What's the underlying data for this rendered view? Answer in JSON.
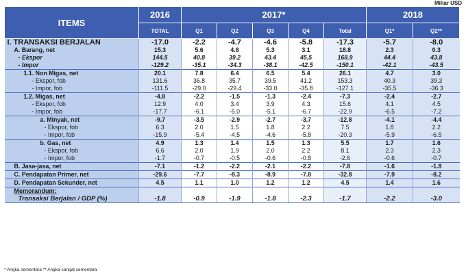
{
  "unit_label": "Miliar USD",
  "header": {
    "items": "ITEMS",
    "y2016": "2016",
    "y2017": "2017*",
    "y2018": "2018",
    "cols": [
      "TOTAL",
      "Q1",
      "Q2",
      "Q3",
      "Q4",
      "Total",
      "Q1*",
      "Q2**"
    ]
  },
  "rows": [
    {
      "label": "I. TRANSAKSI BERJALAN",
      "indent": 0,
      "style": "big",
      "top": true,
      "values": [
        "-17.0",
        "-2.2",
        "-4.7",
        "-4.6",
        "-5.8",
        "-17.3",
        "-5.7",
        "-8.0"
      ]
    },
    {
      "label": "A. Barang, net",
      "indent": 10,
      "style": "bold",
      "top": false,
      "values": [
        "15.3",
        "5.6",
        "4.8",
        "5.3",
        "3.1",
        "18.8",
        "2.3",
        "0.3"
      ]
    },
    {
      "label": "- Ekspor",
      "indent": 16,
      "style": "ital",
      "top": false,
      "values": [
        "144.5",
        "40.8",
        "39.2",
        "43.4",
        "45.5",
        "168.9",
        "44.4",
        "43.8"
      ]
    },
    {
      "label": "- Impor",
      "indent": 16,
      "style": "ital",
      "top": false,
      "values": [
        "-129.2",
        "-35.1",
        "-34.3",
        "-38.1",
        "-42.5",
        "-150.1",
        "-42.1",
        "-43.5"
      ]
    },
    {
      "label": "1.1. Non Migas, net",
      "indent": 24,
      "style": "bold",
      "top": true,
      "values": [
        "20.1",
        "7.8",
        "6.4",
        "6.5",
        "5.4",
        "26.1",
        "4.7",
        "3.0"
      ]
    },
    {
      "label": "- Ekspor, fob",
      "indent": 36,
      "style": "",
      "top": false,
      "values": [
        "131.6",
        "36.8",
        "35.7",
        "39.5",
        "41.2",
        "153.3",
        "40.3",
        "39.3"
      ]
    },
    {
      "label": "- Impor, fob",
      "indent": 36,
      "style": "",
      "top": false,
      "values": [
        "-111.5",
        "-29.0",
        "-29.4",
        "-33.0",
        "-35.8",
        "-127.1",
        "-35.5",
        "-36.3"
      ]
    },
    {
      "label": "1.2. Migas, net",
      "indent": 24,
      "style": "bold",
      "top": true,
      "values": [
        "-4.8",
        "-2.2",
        "-1.5",
        "-1.3",
        "-2.4",
        "-7.3",
        "-2.4",
        "-2.7"
      ]
    },
    {
      "label": "- Ekspor, fob",
      "indent": 36,
      "style": "",
      "top": false,
      "values": [
        "12.9",
        "4.0",
        "3.4",
        "3.9",
        "4.3",
        "15.6",
        "4.1",
        "4.5"
      ]
    },
    {
      "label": "- Impor, fob",
      "indent": 36,
      "style": "",
      "top": false,
      "values": [
        "-17.7",
        "-6.1",
        "-5.0",
        "-5.1",
        "-6.7",
        "-22.9",
        "-6.5",
        "-7.2"
      ]
    },
    {
      "label": "a. Minyak, net",
      "indent": 48,
      "style": "bold",
      "top": true,
      "values": [
        "-9.7",
        "-3.5",
        "-2.9",
        "-2.7",
        "-3.7",
        "-12.8",
        "-4.1",
        "-4.4"
      ]
    },
    {
      "label": "- Ekspor, fob",
      "indent": 54,
      "style": "",
      "top": false,
      "values": [
        "6.3",
        "2.0",
        "1.5",
        "1.8",
        "2.2",
        "7.5",
        "1.8",
        "2.2"
      ]
    },
    {
      "label": "- Impor, fob",
      "indent": 54,
      "style": "",
      "top": false,
      "values": [
        "-15.9",
        "-5.4",
        "-4.5",
        "-4.6",
        "-5.8",
        "-20.3",
        "-5.9",
        "-6.5"
      ]
    },
    {
      "label": "b. Gas, net",
      "indent": 48,
      "style": "bold",
      "top": true,
      "values": [
        "4.9",
        "1.3",
        "1.4",
        "1.5",
        "1.3",
        "5.5",
        "1.7",
        "1.6"
      ]
    },
    {
      "label": "- Ekspor, fob",
      "indent": 54,
      "style": "",
      "top": false,
      "values": [
        "6.6",
        "2.0",
        "1.9",
        "2.0",
        "2.2",
        "8.1",
        "2.3",
        "2.3"
      ]
    },
    {
      "label": "- Impor, fob",
      "indent": 54,
      "style": "",
      "top": false,
      "values": [
        "-1.7",
        "-0.7",
        "-0.5",
        "-0.6",
        "-0.8",
        "-2.6",
        "-0.6",
        "-0.7"
      ]
    },
    {
      "label": "B. Jasa-jasa, net",
      "indent": 10,
      "style": "bold",
      "top": true,
      "values": [
        "-7.1",
        "-1.2",
        "-2.2",
        "-2.1",
        "-2.2",
        "-7.8",
        "-1.6",
        "-1.8"
      ]
    },
    {
      "label": "C. Pendapatan Primer, net",
      "indent": 10,
      "style": "bold",
      "top": true,
      "values": [
        "-29.6",
        "-7.7",
        "-8.3",
        "-8.9",
        "-7.8",
        "-32.8",
        "-7.9",
        "-8.2"
      ]
    },
    {
      "label": "D. Pendapatan Sekunder, net",
      "indent": 10,
      "style": "bold",
      "top": true,
      "values": [
        "4.5",
        "1.1",
        "1.0",
        "1.2",
        "1.2",
        "4.5",
        "1.4",
        "1.6"
      ]
    },
    {
      "label": "Memorandum:",
      "indent": 10,
      "style": "memo",
      "top": true,
      "values": [
        "",
        "",
        "",
        "",
        "",
        "",
        "",
        ""
      ]
    },
    {
      "label": "Transaksi Berjalan / GDP (%)",
      "indent": 16,
      "style": "ratio",
      "top": false,
      "values": [
        "-1.8",
        "-0.9",
        "-1.9",
        "-1.8",
        "-2.3",
        "-1.7",
        "-2.2",
        "-3.0"
      ]
    }
  ],
  "footnote": "* Angka sementara ** Angka sangat sementara"
}
